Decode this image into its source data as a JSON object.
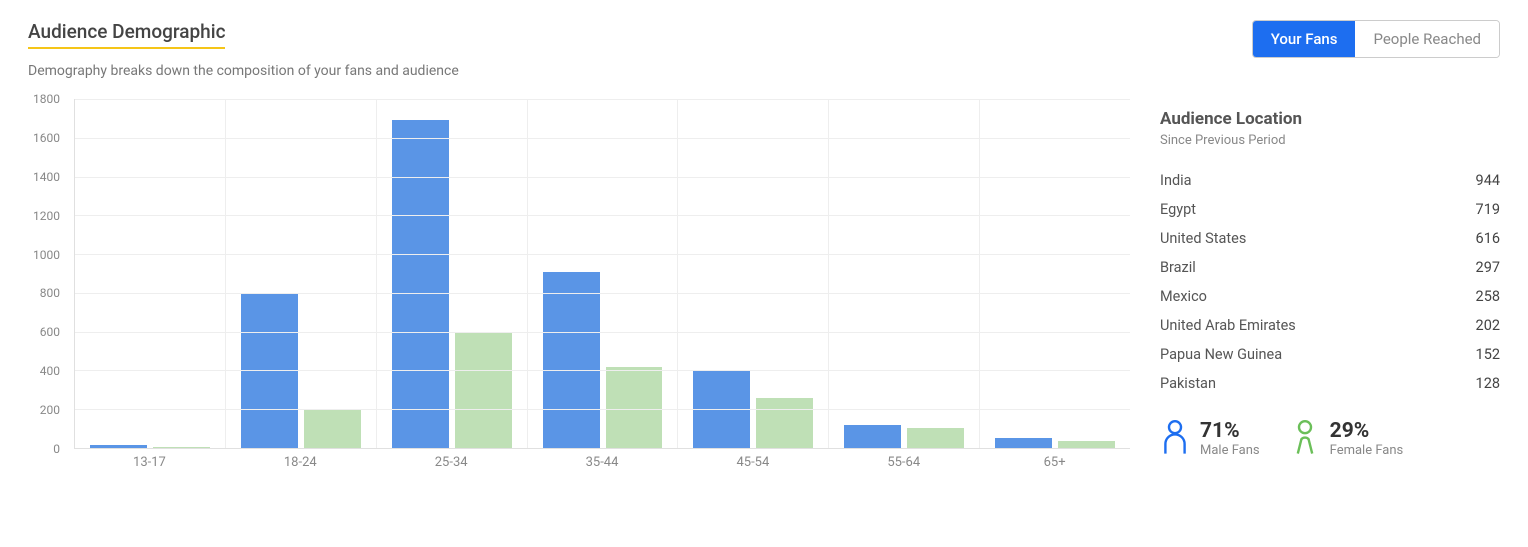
{
  "header": {
    "title": "Audience Demographic",
    "title_underline_color": "#f5c518",
    "subtitle": "Demography breaks down the composition of your fans and audience",
    "tabs": [
      {
        "label": "Your Fans",
        "active": true
      },
      {
        "label": "People Reached",
        "active": false
      }
    ],
    "tab_active_bg": "#1d6ef0",
    "tab_active_fg": "#ffffff",
    "tab_inactive_fg": "#888888"
  },
  "chart": {
    "type": "grouped-bar",
    "ylim": [
      0,
      1800
    ],
    "ytick_step": 200,
    "y_ticks": [
      0,
      200,
      400,
      600,
      800,
      1000,
      1200,
      1400,
      1600,
      1800
    ],
    "categories": [
      "13-17",
      "18-24",
      "25-34",
      "35-44",
      "45-54",
      "55-64",
      "65+"
    ],
    "series": [
      {
        "name": "male",
        "color": "#5a95e6",
        "values": [
          15,
          800,
          1690,
          910,
          400,
          120,
          50
        ]
      },
      {
        "name": "female",
        "color": "#bfe0b6",
        "values": [
          5,
          200,
          600,
          420,
          260,
          105,
          35
        ]
      }
    ],
    "grid_color": "#eeeeee",
    "axis_color": "#e0e0e0",
    "label_color": "#888888",
    "label_fontsize": 12
  },
  "locations": {
    "title": "Audience Location",
    "subtitle": "Since Previous Period",
    "rows": [
      {
        "country": "India",
        "value": 944
      },
      {
        "country": "Egypt",
        "value": 719
      },
      {
        "country": "United States",
        "value": 616
      },
      {
        "country": "Brazil",
        "value": 297
      },
      {
        "country": "Mexico",
        "value": 258
      },
      {
        "country": "United Arab Emirates",
        "value": 202
      },
      {
        "country": "Papua New Guinea",
        "value": 152
      },
      {
        "country": "Pakistan",
        "value": 128
      }
    ]
  },
  "gender": {
    "male": {
      "pct": "71%",
      "label": "Male Fans",
      "color": "#1d6ef0"
    },
    "female": {
      "pct": "29%",
      "label": "Female Fans",
      "color": "#6bbf59"
    }
  }
}
